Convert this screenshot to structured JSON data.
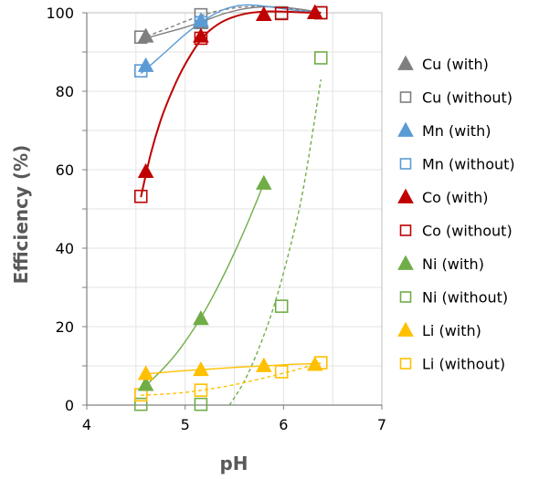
{
  "chart_data": {
    "type": "scatter",
    "title": "",
    "xlabel": "pH",
    "ylabel": "Efficiency (%)",
    "xlim": [
      4,
      7
    ],
    "ylim": [
      0,
      100
    ],
    "xticks": [
      "4",
      "5",
      "6",
      "7"
    ],
    "yticks": [
      "0",
      "20",
      "40",
      "60",
      "80",
      "100"
    ],
    "grid": true,
    "legend_position": "right",
    "series": [
      {
        "name": "Cu (with)",
        "marker": "triangle",
        "color": "#7f7f7f",
        "filled": true,
        "line_style": "solid",
        "x": [
          4.6,
          5.16,
          5.8,
          6.32
        ],
        "y": [
          94,
          97.5,
          99.5,
          100
        ],
        "curve_x": [
          4.55,
          4.8,
          5.0,
          5.2,
          5.4,
          5.6,
          5.8,
          6.0,
          6.2,
          6.38
        ],
        "curve_y": [
          93.2,
          94.9,
          96.3,
          98.0,
          99.8,
          101.0,
          101.5,
          101.4,
          100.8,
          100.1
        ]
      },
      {
        "name": "Cu (without)",
        "marker": "square",
        "color": "#7f7f7f",
        "filled": false,
        "line_style": "dashed",
        "x": [
          4.55,
          5.16,
          5.98,
          6.38
        ],
        "y": [
          93.8,
          99.5,
          100,
          100
        ],
        "curve_x": [
          4.55,
          4.8,
          5.0,
          5.2,
          5.4,
          5.6,
          5.8,
          6.0,
          6.2,
          6.38
        ],
        "curve_y": [
          93.5,
          95.8,
          97.8,
          99.6,
          100.8,
          101.5,
          101.6,
          101.2,
          100.6,
          100.0
        ]
      },
      {
        "name": "Mn (with)",
        "marker": "triangle",
        "color": "#5b9bd5",
        "filled": true,
        "line_style": "solid",
        "x": [
          4.6,
          5.16
        ],
        "y": [
          86.5,
          98
        ],
        "curve_x": [
          4.55,
          4.8,
          5.0,
          5.2,
          5.4,
          5.6,
          5.8,
          6.0,
          6.2,
          6.38
        ],
        "curve_y": [
          84.5,
          90.0,
          94.5,
          98.2,
          100.9,
          102.0,
          101.7,
          101.0,
          100.4,
          100.0
        ]
      },
      {
        "name": "Mn (without)",
        "marker": "square",
        "color": "#5b9bd5",
        "filled": false,
        "line_style": "solid",
        "x": [
          4.55,
          5.16
        ],
        "y": [
          85.2,
          97.5
        ],
        "curve_x": [],
        "curve_y": []
      },
      {
        "name": "Co (with)",
        "marker": "triangle",
        "color": "#c00000",
        "filled": true,
        "line_style": "solid",
        "x": [
          4.6,
          5.16,
          5.8,
          6.32
        ],
        "y": [
          59.5,
          94,
          99.5,
          100
        ],
        "curve_x": [
          4.55,
          4.65,
          4.75,
          4.85,
          4.95,
          5.05,
          5.15,
          5.25,
          5.4,
          5.6,
          5.8,
          6.0,
          6.2,
          6.38
        ],
        "curve_y": [
          53.0,
          64.0,
          72.5,
          79.0,
          84.5,
          89.0,
          92.8,
          95.5,
          98.0,
          99.7,
          100.3,
          100.3,
          100.1,
          100.0
        ]
      },
      {
        "name": "Co (without)",
        "marker": "square",
        "color": "#c00000",
        "filled": false,
        "line_style": "solid",
        "x": [
          4.55,
          5.16,
          5.98,
          6.38
        ],
        "y": [
          53.2,
          93.5,
          99.8,
          100
        ],
        "curve_x": [],
        "curve_y": []
      },
      {
        "name": "Ni (with)",
        "marker": "triangle",
        "color": "#70ad47",
        "filled": true,
        "line_style": "solid",
        "x": [
          4.6,
          5.16,
          5.8
        ],
        "y": [
          5.2,
          22,
          56.5
        ],
        "curve_x": [
          4.6,
          4.75,
          4.9,
          5.05,
          5.2,
          5.35,
          5.5,
          5.65,
          5.8
        ],
        "curve_y": [
          5.0,
          8.6,
          12.8,
          18.0,
          24.0,
          31.0,
          38.8,
          47.3,
          56.5
        ]
      },
      {
        "name": "Ni (without)",
        "marker": "square",
        "color": "#70ad47",
        "filled": false,
        "line_style": "dashed",
        "x": [
          4.55,
          5.16,
          5.98,
          6.38
        ],
        "y": [
          0.2,
          0.2,
          25.2,
          88.5
        ],
        "curve_x": [
          5.45,
          5.6,
          5.75,
          5.9,
          6.05,
          6.2,
          6.38
        ],
        "curve_y": [
          0,
          6.0,
          14.5,
          25.0,
          38.5,
          55.0,
          83.0
        ]
      },
      {
        "name": "Li (with)",
        "marker": "triangle",
        "color": "#ffc000",
        "filled": true,
        "line_style": "solid",
        "x": [
          4.6,
          5.16,
          5.8,
          6.32
        ],
        "y": [
          8,
          9,
          10,
          10.3
        ],
        "curve_x": [
          4.55,
          4.9,
          5.2,
          5.5,
          5.8,
          6.1,
          6.38
        ],
        "curve_y": [
          7.8,
          8.6,
          9.1,
          9.6,
          10.0,
          10.4,
          10.6
        ]
      },
      {
        "name": "Li (without)",
        "marker": "square",
        "color": "#ffc000",
        "filled": false,
        "line_style": "dashed",
        "x": [
          4.55,
          5.16,
          5.98,
          6.38
        ],
        "y": [
          2.6,
          3.8,
          8.5,
          10.8
        ],
        "curve_x": [
          4.55,
          4.9,
          5.2,
          5.5,
          5.8,
          6.1,
          6.38
        ],
        "curve_y": [
          2.5,
          3.0,
          3.9,
          5.2,
          6.9,
          8.8,
          10.8
        ]
      }
    ]
  }
}
